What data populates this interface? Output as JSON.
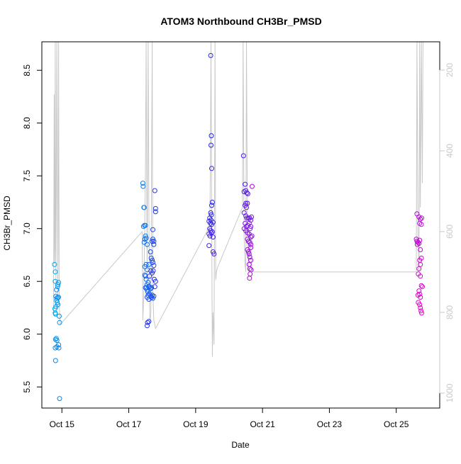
{
  "chart_data": {
    "type": "scatter",
    "title": "ATOM3 Northbound CH3Br_PMSD",
    "xlabel": "Date",
    "ylabel": "CH3Br_PMSD",
    "x_ticks": [
      "Oct 15",
      "Oct 17",
      "Oct 19",
      "Oct 21",
      "Oct 23",
      "Oct 25"
    ],
    "x_tick_days": [
      15,
      17,
      19,
      21,
      23,
      25
    ],
    "xlim": [
      14.4,
      26.3
    ],
    "ylim": [
      5.3,
      8.77
    ],
    "y_ticks": [
      "5.5",
      "6.0",
      "6.5",
      "7.0",
      "7.5",
      "8.0",
      "8.5"
    ],
    "y_tick_values": [
      5.5,
      6.0,
      6.5,
      7.0,
      7.5,
      8.0,
      8.5
    ],
    "y2_ticks": [
      "200",
      "400",
      "600",
      "800",
      "1000"
    ],
    "y2_tick_values": [
      200,
      400,
      600,
      800,
      1000
    ],
    "y2_lim": [
      1037,
      130
    ],
    "grid": false,
    "point_color_start": "#00aaee",
    "point_color_mid": "#2222ee",
    "point_color_end": "#ee00cc",
    "secondary_color": "#c8c8c8",
    "points": [
      [
        14.78,
        6.66
      ],
      [
        14.8,
        6.59
      ],
      [
        14.8,
        6.5
      ],
      [
        14.79,
        6.24
      ],
      [
        14.8,
        6.2
      ],
      [
        14.81,
        6.19
      ],
      [
        14.82,
        6.26
      ],
      [
        14.84,
        6.32
      ],
      [
        14.85,
        6.34
      ],
      [
        14.86,
        6.3
      ],
      [
        14.87,
        6.45
      ],
      [
        14.88,
        6.47
      ],
      [
        14.9,
        6.49
      ],
      [
        14.87,
        6.35
      ],
      [
        14.9,
        6.35
      ],
      [
        14.88,
        6.28
      ],
      [
        14.92,
        6.17
      ],
      [
        14.93,
        6.11
      ],
      [
        14.81,
        5.95
      ],
      [
        14.83,
        5.96
      ],
      [
        14.85,
        5.94
      ],
      [
        14.8,
        5.87
      ],
      [
        14.85,
        5.88
      ],
      [
        14.9,
        5.9
      ],
      [
        14.91,
        5.87
      ],
      [
        14.81,
        5.75
      ],
      [
        14.93,
        5.39
      ],
      [
        14.82,
        6.36
      ],
      [
        14.84,
        6.42
      ],
      [
        17.42,
        7.43
      ],
      [
        17.43,
        7.4
      ],
      [
        17.45,
        7.2
      ],
      [
        17.46,
        7.2
      ],
      [
        17.44,
        7.02
      ],
      [
        17.47,
        7.03
      ],
      [
        17.5,
        7.03
      ],
      [
        17.48,
        6.9
      ],
      [
        17.5,
        6.93
      ],
      [
        17.52,
        6.91
      ],
      [
        17.46,
        6.87
      ],
      [
        17.55,
        6.85
      ],
      [
        17.48,
        6.64
      ],
      [
        17.52,
        6.66
      ],
      [
        17.55,
        6.61
      ],
      [
        17.6,
        6.66
      ],
      [
        17.48,
        6.56
      ],
      [
        17.5,
        6.55
      ],
      [
        17.52,
        6.52
      ],
      [
        17.55,
        6.47
      ],
      [
        17.58,
        6.49
      ],
      [
        17.5,
        6.44
      ],
      [
        17.53,
        6.44
      ],
      [
        17.55,
        6.42
      ],
      [
        17.57,
        6.4
      ],
      [
        17.6,
        6.45
      ],
      [
        17.62,
        6.45
      ],
      [
        17.65,
        6.43
      ],
      [
        17.68,
        6.44
      ],
      [
        17.62,
        6.38
      ],
      [
        17.66,
        6.36
      ],
      [
        17.68,
        6.35
      ],
      [
        17.7,
        6.37
      ],
      [
        17.72,
        6.34
      ],
      [
        17.75,
        6.36
      ],
      [
        17.55,
        6.35
      ],
      [
        17.58,
        6.37
      ],
      [
        17.6,
        6.33
      ],
      [
        17.65,
        6.78
      ],
      [
        17.67,
        6.72
      ],
      [
        17.7,
        6.7
      ],
      [
        17.72,
        6.68
      ],
      [
        17.75,
        6.65
      ],
      [
        17.7,
        6.88
      ],
      [
        17.72,
        6.9
      ],
      [
        17.75,
        6.88
      ],
      [
        17.72,
        6.99
      ],
      [
        17.75,
        6.85
      ],
      [
        17.78,
        7.36
      ],
      [
        17.8,
        7.19
      ],
      [
        17.8,
        7.16
      ],
      [
        17.62,
        6.55
      ],
      [
        17.66,
        6.6
      ],
      [
        17.7,
        6.58
      ],
      [
        17.73,
        6.6
      ],
      [
        17.76,
        6.52
      ],
      [
        17.6,
        6.12
      ],
      [
        17.56,
        6.11
      ],
      [
        17.55,
        6.08
      ],
      [
        17.78,
        6.45
      ],
      [
        17.8,
        6.5
      ],
      [
        19.45,
        8.64
      ],
      [
        19.47,
        7.88
      ],
      [
        19.46,
        7.79
      ],
      [
        19.48,
        7.57
      ],
      [
        19.5,
        7.25
      ],
      [
        19.48,
        7.22
      ],
      [
        19.45,
        7.15
      ],
      [
        19.47,
        7.13
      ],
      [
        19.42,
        7.1
      ],
      [
        19.46,
        7.08
      ],
      [
        19.4,
        7.07
      ],
      [
        19.44,
        7.05
      ],
      [
        19.48,
        7.04
      ],
      [
        19.52,
        7.06
      ],
      [
        19.42,
        7.0
      ],
      [
        19.45,
        6.98
      ],
      [
        19.5,
        6.97
      ],
      [
        19.4,
        6.95
      ],
      [
        19.43,
        6.93
      ],
      [
        19.47,
        6.96
      ],
      [
        19.52,
        6.92
      ],
      [
        19.4,
        6.84
      ],
      [
        19.52,
        6.78
      ],
      [
        19.55,
        6.76
      ],
      [
        20.43,
        7.69
      ],
      [
        20.48,
        7.42
      ],
      [
        20.45,
        7.35
      ],
      [
        20.5,
        7.36
      ],
      [
        20.53,
        7.34
      ],
      [
        20.56,
        7.33
      ],
      [
        20.5,
        7.24
      ],
      [
        20.55,
        7.24
      ],
      [
        20.48,
        7.22
      ],
      [
        20.52,
        7.2
      ],
      [
        20.45,
        7.15
      ],
      [
        20.5,
        7.12
      ],
      [
        20.53,
        7.1
      ],
      [
        20.58,
        7.1
      ],
      [
        20.62,
        7.1
      ],
      [
        20.65,
        7.08
      ],
      [
        20.67,
        7.11
      ],
      [
        20.48,
        7.05
      ],
      [
        20.52,
        7.02
      ],
      [
        20.56,
        7.03
      ],
      [
        20.6,
        7.05
      ],
      [
        20.63,
        7.0
      ],
      [
        20.65,
        7.02
      ],
      [
        20.45,
        7.0
      ],
      [
        20.5,
        6.98
      ],
      [
        20.55,
        6.96
      ],
      [
        20.6,
        6.95
      ],
      [
        20.65,
        6.92
      ],
      [
        20.68,
        6.93
      ],
      [
        20.55,
        6.9
      ],
      [
        20.58,
        6.88
      ],
      [
        20.62,
        6.87
      ],
      [
        20.65,
        6.85
      ],
      [
        20.55,
        6.8
      ],
      [
        20.58,
        6.78
      ],
      [
        20.6,
        6.76
      ],
      [
        20.65,
        6.82
      ],
      [
        20.62,
        6.73
      ],
      [
        20.65,
        6.7
      ],
      [
        20.6,
        6.66
      ],
      [
        20.62,
        6.62
      ],
      [
        20.66,
        6.61
      ],
      [
        20.63,
        6.57
      ],
      [
        20.61,
        6.53
      ],
      [
        20.69,
        7.4
      ],
      [
        25.62,
        7.14
      ],
      [
        25.68,
        7.11
      ],
      [
        25.72,
        7.09
      ],
      [
        25.76,
        7.1
      ],
      [
        25.7,
        7.05
      ],
      [
        25.75,
        7.04
      ],
      [
        25.6,
        6.9
      ],
      [
        25.62,
        6.88
      ],
      [
        25.65,
        6.87
      ],
      [
        25.68,
        6.86
      ],
      [
        25.63,
        6.85
      ],
      [
        25.7,
        6.89
      ],
      [
        25.72,
        6.8
      ],
      [
        25.75,
        6.72
      ],
      [
        25.7,
        6.7
      ],
      [
        25.72,
        6.66
      ],
      [
        25.68,
        6.62
      ],
      [
        25.66,
        6.57
      ],
      [
        25.72,
        6.55
      ],
      [
        25.75,
        6.46
      ],
      [
        25.78,
        6.45
      ],
      [
        25.68,
        6.41
      ],
      [
        25.7,
        6.38
      ],
      [
        25.65,
        6.37
      ],
      [
        25.72,
        6.35
      ],
      [
        25.66,
        6.3
      ],
      [
        25.7,
        6.28
      ],
      [
        25.72,
        6.25
      ],
      [
        25.74,
        6.22
      ],
      [
        25.76,
        6.2
      ]
    ],
    "secondary_series": [
      [
        14.75,
        800
      ],
      [
        14.76,
        520
      ],
      [
        14.77,
        260
      ],
      [
        14.78,
        680
      ],
      [
        14.79,
        640
      ],
      [
        14.8,
        130
      ],
      [
        14.82,
        740
      ],
      [
        14.83,
        560
      ],
      [
        14.85,
        130
      ],
      [
        14.88,
        760
      ],
      [
        14.9,
        130
      ],
      [
        14.92,
        780
      ],
      [
        14.95,
        830
      ],
      [
        17.4,
        600
      ],
      [
        17.42,
        820
      ],
      [
        17.45,
        750
      ],
      [
        17.5,
        450
      ],
      [
        17.52,
        130
      ],
      [
        17.55,
        740
      ],
      [
        17.58,
        130
      ],
      [
        17.6,
        540
      ],
      [
        17.63,
        830
      ],
      [
        17.66,
        800
      ],
      [
        17.7,
        130
      ],
      [
        17.72,
        750
      ],
      [
        17.75,
        820
      ],
      [
        17.78,
        830
      ],
      [
        17.8,
        840
      ],
      [
        19.4,
        590
      ],
      [
        19.42,
        610
      ],
      [
        19.44,
        450
      ],
      [
        19.46,
        130
      ],
      [
        19.48,
        580
      ],
      [
        19.5,
        910
      ],
      [
        19.52,
        800
      ],
      [
        19.55,
        880
      ],
      [
        19.58,
        130
      ],
      [
        19.6,
        720
      ],
      [
        19.62,
        700
      ],
      [
        19.65,
        690
      ],
      [
        20.4,
        540
      ],
      [
        20.42,
        130
      ],
      [
        20.45,
        620
      ],
      [
        20.48,
        680
      ],
      [
        20.5,
        700
      ],
      [
        20.52,
        130
      ],
      [
        20.55,
        590
      ],
      [
        20.58,
        700
      ],
      [
        20.62,
        600
      ],
      [
        20.68,
        690
      ],
      [
        20.72,
        700
      ],
      [
        25.6,
        700
      ],
      [
        25.62,
        130
      ],
      [
        25.65,
        600
      ],
      [
        25.68,
        700
      ],
      [
        25.7,
        130
      ],
      [
        25.72,
        540
      ],
      [
        25.75,
        130
      ],
      [
        25.78,
        480
      ],
      [
        25.8,
        130
      ]
    ]
  }
}
